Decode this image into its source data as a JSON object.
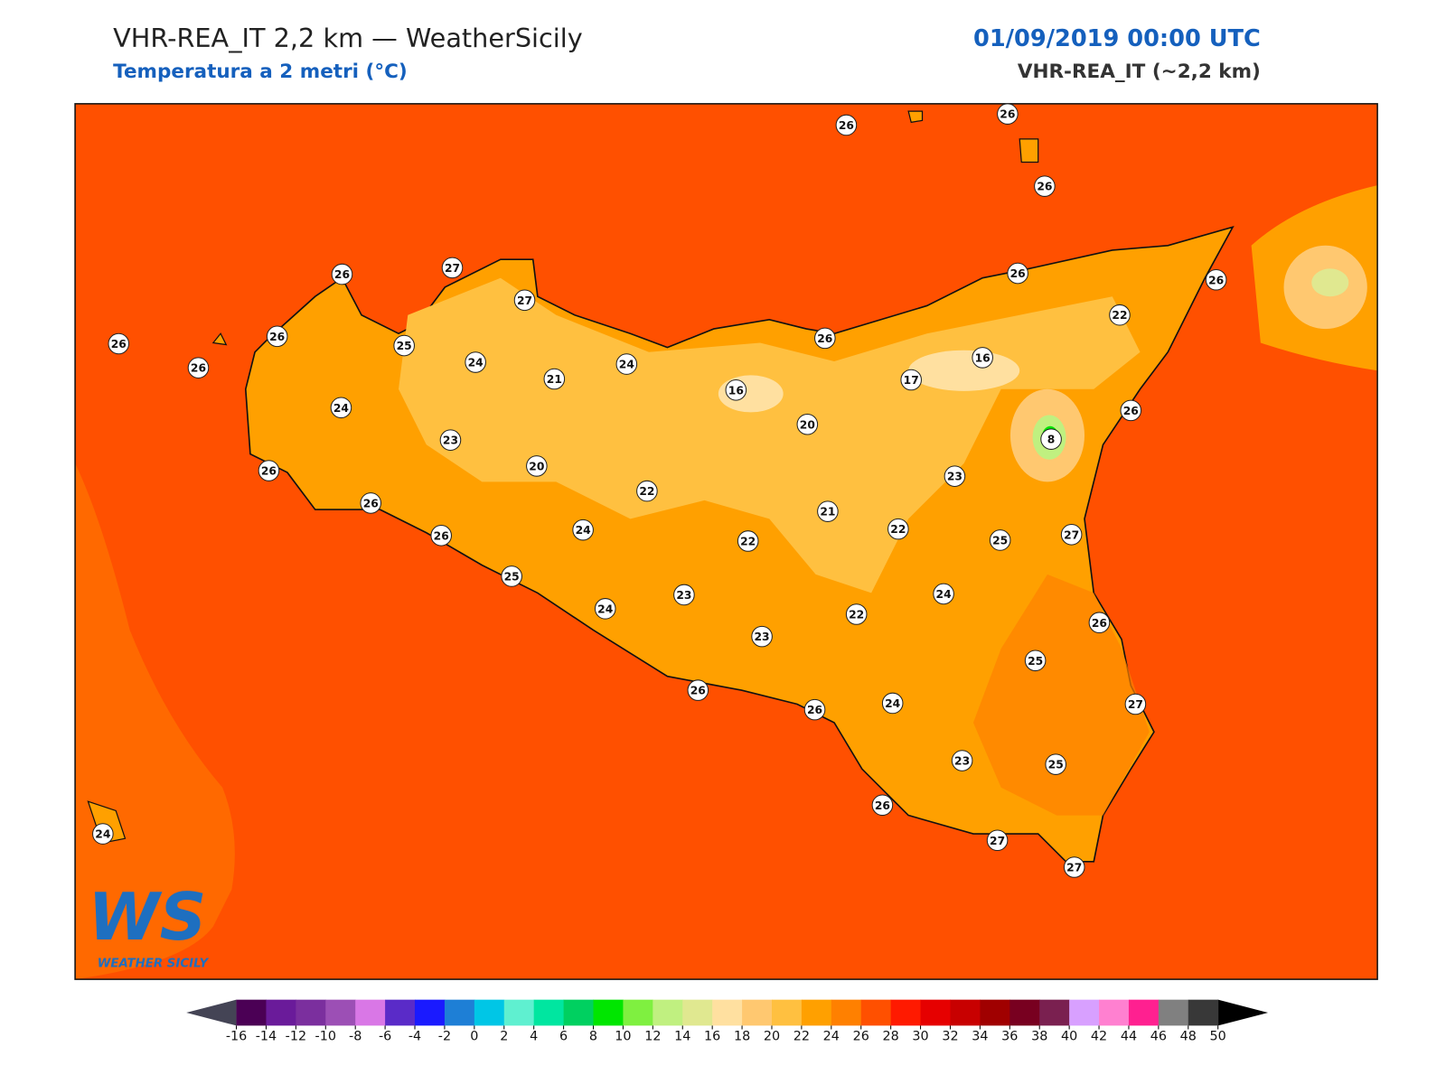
{
  "header": {
    "title": "VHR-REA_IT 2,2 km — WeatherSicily",
    "subtitle": "Temperatura a 2 metri (°C)",
    "datetime": "01/09/2019 00:00 UTC",
    "model": "VHR-REA_IT (~2,2 km)"
  },
  "stations": [
    26,
    26,
    26,
    26,
    27,
    27,
    26,
    26,
    26,
    26,
    26,
    25,
    24,
    21,
    24,
    26,
    22,
    16,
    17,
    16,
    24,
    20,
    26,
    23,
    8,
    20,
    26,
    23,
    22,
    26,
    21,
    24,
    22,
    26,
    22,
    25,
    27,
    25,
    24,
    23,
    24,
    22,
    26,
    23,
    25,
    26,
    26,
    24,
    27,
    23,
    25,
    26,
    24,
    27,
    27
  ],
  "colorbar": {
    "ticks": [
      -16,
      -14,
      -12,
      -10,
      -8,
      -6,
      -4,
      -2,
      0,
      2,
      4,
      6,
      8,
      10,
      12,
      14,
      16,
      18,
      20,
      22,
      24,
      26,
      28,
      30,
      32,
      34,
      36,
      38,
      40,
      42,
      44,
      46,
      48,
      50
    ],
    "colors": [
      "#4b0055",
      "#6a1b9a",
      "#7b2f9e",
      "#9c4fb5",
      "#d977e6",
      "#5a2bc8",
      "#1a1aff",
      "#1e7fd6",
      "#00c6e6",
      "#5ff0d0",
      "#00e6a0",
      "#00d060",
      "#00e600",
      "#7ff040",
      "#c0f080",
      "#e0e890",
      "#ffe0a0",
      "#ffc870",
      "#ffc040",
      "#ffa000",
      "#ff8000",
      "#ff5000",
      "#ff1a00",
      "#e60000",
      "#c80000",
      "#a00000",
      "#780020",
      "#7a2050",
      "#d8a0ff",
      "#ff80d0",
      "#ff2090",
      "#808080",
      "#383838"
    ],
    "under_color": "#444455",
    "over_color": "#000000"
  },
  "logo": {
    "mark": "WS",
    "text": "WEATHER SICILY"
  }
}
